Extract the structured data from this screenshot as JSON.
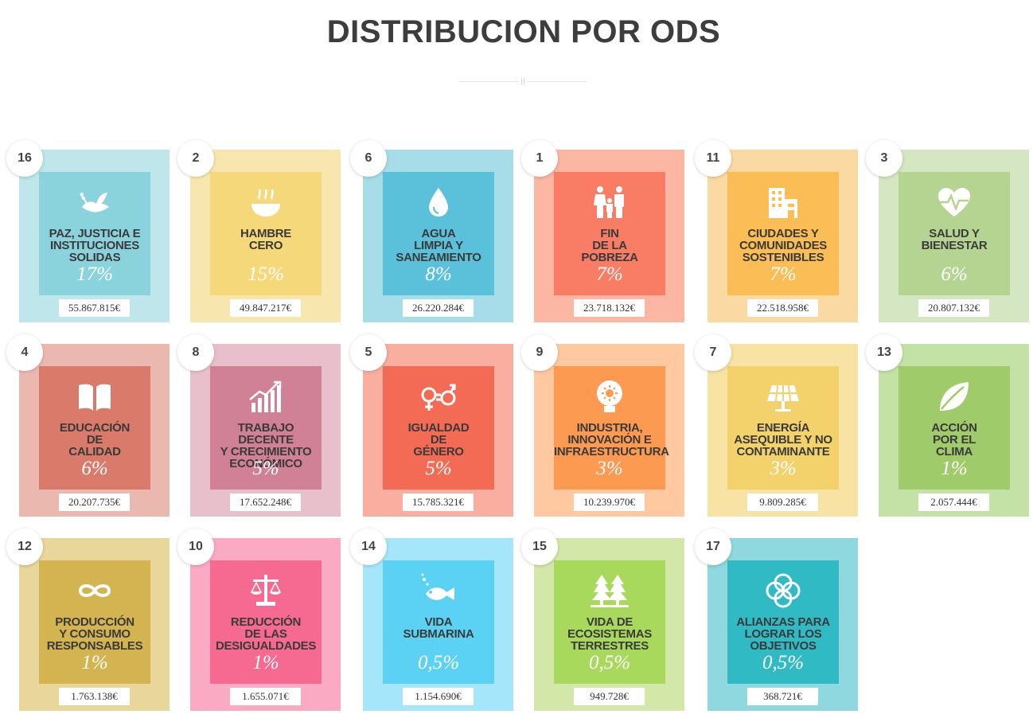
{
  "title": "DISTRIBUCION POR ODS",
  "cards": [
    {
      "num": "16",
      "label": "PAZ, JUSTICIA E\nINSTITUCIONES\nSOLIDAS",
      "pct": "17%",
      "amount": "55.867.815€",
      "outer": "#bfe6ea",
      "inner": "#8bd3dc",
      "icon": "dove-icon"
    },
    {
      "num": "2",
      "label": "HAMBRE\nCERO",
      "pct": "15%",
      "amount": "49.847.217€",
      "outer": "#f7e7ae",
      "inner": "#f4d879",
      "icon": "food-bowl-icon"
    },
    {
      "num": "6",
      "label": "AGUA\nLIMPIA Y\nSANEAMIENTO",
      "pct": "8%",
      "amount": "26.220.284€",
      "outer": "#a6dde9",
      "inner": "#5bc0d9",
      "icon": "water-drop-icon"
    },
    {
      "num": "1",
      "label": "FIN\nDE LA\nPOBREZA",
      "pct": "7%",
      "amount": "23.718.132€",
      "outer": "#fbb6a4",
      "inner": "#f97c65",
      "icon": "family-icon"
    },
    {
      "num": "11",
      "label": "CIUDADES Y\nCOMUNIDADES\nSOSTENIBLES",
      "pct": "7%",
      "amount": "22.518.958€",
      "outer": "#fbd9a2",
      "inner": "#fbbd55",
      "icon": "buildings-icon"
    },
    {
      "num": "3",
      "label": "SALUD Y\nBIENESTAR",
      "pct": "6%",
      "amount": "20.807.132€",
      "outer": "#d5e6c2",
      "inner": "#b6d491",
      "icon": "heartbeat-icon"
    },
    {
      "num": "4",
      "label": "EDUCACIÓN\nDE\nCALIDAD",
      "pct": "6%",
      "amount": "20.207.735€",
      "outer": "#ebb8b0",
      "inner": "#d97a6b",
      "icon": "book-icon"
    },
    {
      "num": "8",
      "label": "TRABAJO DECENTE\nY CRECIMIENTO\nECONÓMICO",
      "pct": "5%",
      "amount": "17.652.248€",
      "outer": "#e8c0cb",
      "inner": "#d08196",
      "icon": "growth-chart-icon"
    },
    {
      "num": "5",
      "label": "IGUALDAD\nDE\nGÉNERO",
      "pct": "5%",
      "amount": "15.785.321€",
      "outer": "#f9ae9f",
      "inner": "#f36b55",
      "icon": "gender-equality-icon"
    },
    {
      "num": "9",
      "label": "INDUSTRIA,\nINNOVACIÓN E\nINFRAESTRUCTURA",
      "pct": "3%",
      "amount": "10.239.970€",
      "outer": "#fec9a0",
      "inner": "#fd9a52",
      "icon": "lightbulb-icon"
    },
    {
      "num": "7",
      "label": "ENERGÍA\nASEQUIBLE Y NO\nCONTAMINANTE",
      "pct": "3%",
      "amount": "9.809.285€",
      "outer": "#f8e3a5",
      "inner": "#f3d26c",
      "icon": "solar-panel-icon"
    },
    {
      "num": "13",
      "label": "ACCIÓN\nPOR EL\nCLIMA",
      "pct": "1%",
      "amount": "2.057.444€",
      "outer": "#c5e2a6",
      "inner": "#9fcb6a",
      "icon": "leaf-icon"
    },
    {
      "num": "12",
      "label": "PRODUCCIÓN\nY CONSUMO\nRESPONSABLES",
      "pct": "1%",
      "amount": "1.763.138€",
      "outer": "#e9d69b",
      "inner": "#d4b450",
      "icon": "infinity-icon"
    },
    {
      "num": "10",
      "label": "REDUCCIÓN\nDE LAS\nDESIGUALDADES",
      "pct": "1%",
      "amount": "1.655.071€",
      "outer": "#faaac3",
      "inner": "#f66991",
      "icon": "scales-icon"
    },
    {
      "num": "14",
      "label": "VIDA\nSUBMARINA",
      "pct": "0,5%",
      "amount": "1.154.690€",
      "outer": "#a5e6fb",
      "inner": "#5bd2f3",
      "icon": "fish-icon"
    },
    {
      "num": "15",
      "label": "VIDA DE\nECOSISTEMAS\nTERRESTRES",
      "pct": "0,5%",
      "amount": "949.728€",
      "outer": "#d3e8a8",
      "inner": "#a8d85c",
      "icon": "trees-icon"
    },
    {
      "num": "17",
      "label": "ALIANZAS PARA\nLOGRAR LOS\nOBJETIVOS",
      "pct": "0,5%",
      "amount": "368.721€",
      "outer": "#8fd8e0",
      "inner": "#2fbac4",
      "icon": "rings-icon"
    }
  ]
}
